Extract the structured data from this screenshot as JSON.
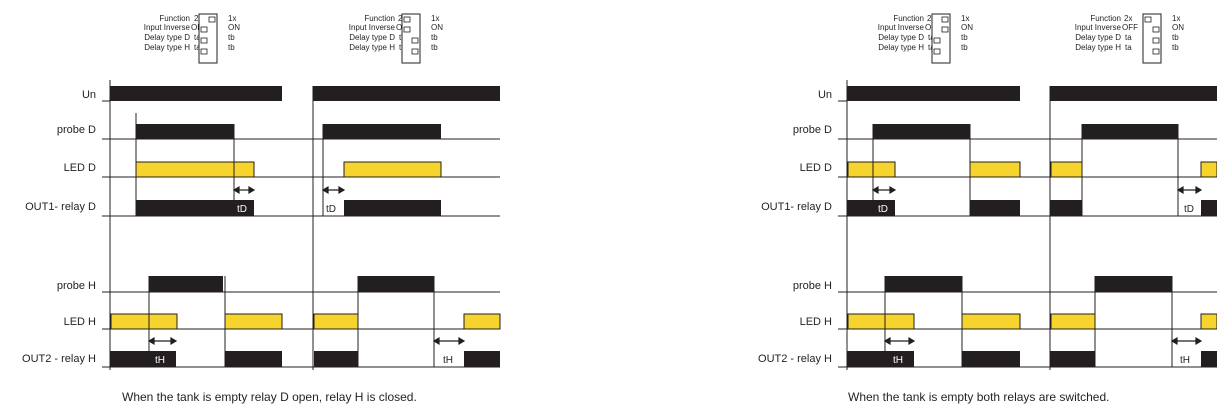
{
  "switch_box": {
    "rows": [
      {
        "label": "Function",
        "left": "2x",
        "right": "1x"
      },
      {
        "label": "Input Inverse",
        "left": "OFF",
        "right": "ON"
      },
      {
        "label": "Delay type D",
        "left": "ta",
        "right": "tb"
      },
      {
        "label": "Delay type H",
        "left": "ta",
        "right": "tb"
      }
    ]
  },
  "signals": {
    "un": "Un",
    "probe_d": "probe D",
    "led_d": "LED D",
    "out1": "OUT1- relay D",
    "probe_h": "probe H",
    "led_h": "LED H",
    "out2": "OUT2 - relay H"
  },
  "delay_labels": {
    "td": "tD",
    "th": "tH"
  },
  "captions": {
    "left": "When the tank is empty relay D open, relay H is closed.",
    "right": "When the tank is empty both relays are switched."
  },
  "colors": {
    "black": "#231f20",
    "yellow": "#f6d32d",
    "line": "#231f20"
  }
}
